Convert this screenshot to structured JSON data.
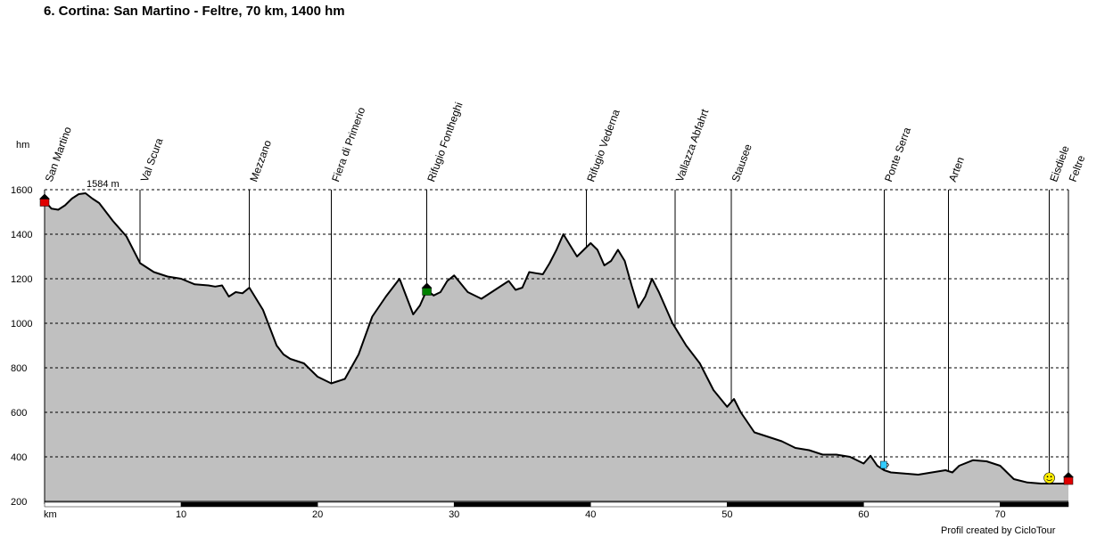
{
  "page": {
    "title": "6. Cortina: San Martino - Feltre, 70 km, 1400 hm",
    "credit": "Profil created by CicloTour"
  },
  "chart_data": {
    "type": "area",
    "title": "6. Cortina: San Martino - Feltre, 70 km, 1400 hm",
    "xlabel": "km",
    "ylabel": "hm",
    "xlim": [
      0,
      75
    ],
    "ylim": [
      200,
      1600
    ],
    "x_ticks": [
      10,
      20,
      30,
      40,
      50,
      60,
      70
    ],
    "y_ticks": [
      200,
      400,
      600,
      800,
      1000,
      1200,
      1400,
      1600
    ],
    "grid": true,
    "max_label": "1584 m",
    "colors": {
      "fill": "#c0c0c0",
      "line": "#000000",
      "grid": "#000000",
      "max_label": "#cc0000",
      "start_marker": "#e00000",
      "hut_marker": "#008000",
      "cafe_marker": "#33ccff",
      "smiley_marker": "#ffee00"
    },
    "series": [
      {
        "x": [
          0,
          0.5,
          1,
          1.5,
          2,
          2.5,
          3,
          3.5,
          4,
          5,
          6,
          7,
          8,
          9,
          10,
          11,
          12,
          12.5,
          13,
          13.5,
          14,
          14.5,
          15,
          16,
          17,
          17.5,
          18,
          19,
          20,
          21,
          21.5,
          22,
          23,
          24,
          25,
          26,
          27,
          27.5,
          28,
          28.5,
          29,
          29.5,
          30,
          31,
          32,
          33,
          34,
          34.5,
          35,
          35.5,
          36,
          36.5,
          37,
          37.5,
          38,
          38.5,
          39,
          39.5,
          40,
          40.5,
          41,
          41.5,
          42,
          42.5,
          43,
          43.5,
          44,
          44.5,
          45,
          46,
          47,
          48,
          49,
          50,
          50.5,
          51,
          52,
          53,
          54,
          55,
          56,
          57,
          58,
          59,
          60,
          60.5,
          61,
          61.5,
          62,
          63,
          64,
          65,
          66,
          66.5,
          67,
          68,
          69,
          70,
          71,
          72,
          73,
          74,
          75
        ],
        "y": [
          1550,
          1515,
          1510,
          1530,
          1560,
          1580,
          1584,
          1560,
          1540,
          1460,
          1390,
          1270,
          1230,
          1210,
          1200,
          1175,
          1170,
          1165,
          1170,
          1120,
          1140,
          1135,
          1160,
          1060,
          900,
          860,
          840,
          820,
          760,
          730,
          740,
          750,
          860,
          1030,
          1120,
          1200,
          1040,
          1080,
          1150,
          1125,
          1140,
          1190,
          1215,
          1140,
          1110,
          1150,
          1190,
          1150,
          1160,
          1230,
          1225,
          1220,
          1270,
          1330,
          1400,
          1350,
          1300,
          1330,
          1360,
          1330,
          1260,
          1280,
          1330,
          1280,
          1170,
          1070,
          1120,
          1200,
          1140,
          1000,
          900,
          820,
          700,
          625,
          660,
          600,
          510,
          490,
          470,
          440,
          430,
          410,
          410,
          400,
          370,
          405,
          360,
          340,
          330,
          325,
          320,
          330,
          340,
          330,
          360,
          385,
          380,
          360,
          300,
          285,
          280,
          280,
          280
        ]
      }
    ],
    "waypoints": [
      {
        "name": "San Martino",
        "km": 0
      },
      {
        "name": "Val Scura",
        "km": 7
      },
      {
        "name": "Mezzano",
        "km": 15
      },
      {
        "name": "Fiera di Primerio",
        "km": 21
      },
      {
        "name": "Rifugio Fontheghi",
        "km": 28
      },
      {
        "name": "Rifugio Vederna",
        "km": 39.7
      },
      {
        "name": "Vallazza Abfahrt",
        "km": 46.2
      },
      {
        "name": "Stausee",
        "km": 50.3
      },
      {
        "name": "Ponte Serra",
        "km": 61.5
      },
      {
        "name": "Arten",
        "km": 66.2
      },
      {
        "name": "Eisdiele",
        "km": 73.6
      },
      {
        "name": "Feltre",
        "km": 75
      }
    ],
    "markers": [
      {
        "type": "start",
        "km": 0,
        "hm": 1550
      },
      {
        "type": "hut",
        "km": 28,
        "hm": 1150
      },
      {
        "type": "cafe",
        "km": 61.5,
        "hm": 360
      },
      {
        "type": "smiley",
        "km": 73.6,
        "hm": 305
      },
      {
        "type": "finish",
        "km": 75,
        "hm": 300
      }
    ]
  }
}
